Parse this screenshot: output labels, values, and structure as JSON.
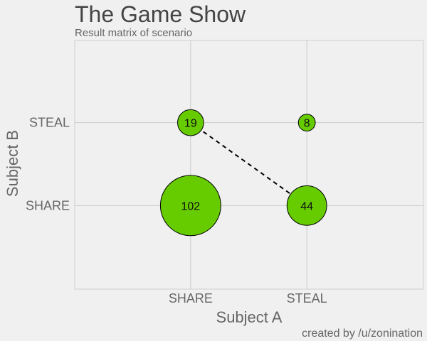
{
  "chart_data": {
    "type": "scatter",
    "title": "The Game Show",
    "subtitle": "Result matrix of scenario",
    "xlabel": "Subject A",
    "ylabel": "Subject B",
    "x_categories": [
      "SHARE",
      "STEAL"
    ],
    "y_categories": [
      "SHARE",
      "STEAL"
    ],
    "points": [
      {
        "x": "SHARE",
        "y": "SHARE",
        "value": 102
      },
      {
        "x": "SHARE",
        "y": "STEAL",
        "value": 19
      },
      {
        "x": "STEAL",
        "y": "SHARE",
        "value": 44
      },
      {
        "x": "STEAL",
        "y": "STEAL",
        "value": 8
      }
    ],
    "connector": {
      "from": {
        "x": "SHARE",
        "y": "STEAL"
      },
      "to": {
        "x": "STEAL",
        "y": "SHARE"
      },
      "style": "dashed"
    },
    "grid": true,
    "bubble_color": "#66cc00",
    "credit": "created by /u/zonination"
  }
}
